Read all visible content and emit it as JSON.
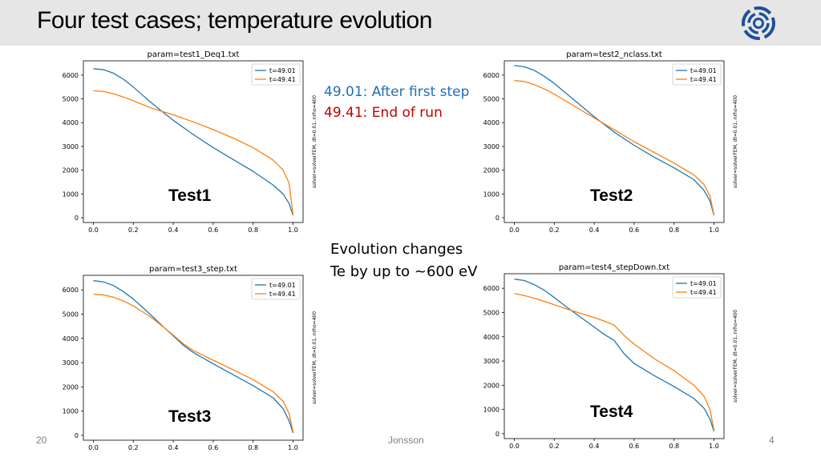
{
  "slide": {
    "title": "Four test cases; temperature evolution",
    "legend_note_first": "49.01: After first step",
    "legend_note_end": "49.41: End of run",
    "evolution_line1": "Evolution changes",
    "evolution_line2": "Te by up to ~600 eV",
    "footer_left": "20",
    "footer_center": "Jonsson",
    "footer_right": "4",
    "colors": {
      "series1": "#1f77b4",
      "series2": "#ff7f0e",
      "note_blue": "#1f6fb5",
      "note_red": "#c00000",
      "title_bar": "#e6e6e6"
    }
  },
  "chart_data": [
    {
      "type": "line",
      "title": "param=test1_Deq1.txt",
      "label": "Test1",
      "side_text": "solver=solverFEM, dt=0.01, nrho=400",
      "xlim": [
        -0.05,
        1.05
      ],
      "ylim": [
        -200,
        6600
      ],
      "xticks": [
        "0.0",
        "0.2",
        "0.4",
        "0.6",
        "0.8",
        "1.0"
      ],
      "yticks": [
        "0",
        "1000",
        "2000",
        "3000",
        "4000",
        "5000",
        "6000"
      ],
      "legend_position": "top-right",
      "x": [
        0,
        0.05,
        0.1,
        0.15,
        0.2,
        0.25,
        0.3,
        0.35,
        0.4,
        0.5,
        0.6,
        0.7,
        0.8,
        0.9,
        0.95,
        0.98,
        1.0
      ],
      "series": [
        {
          "name": "t=49.01",
          "values": [
            6270,
            6230,
            6080,
            5830,
            5500,
            5130,
            4770,
            4430,
            4100,
            3500,
            2950,
            2450,
            1950,
            1380,
            1000,
            600,
            100
          ]
        },
        {
          "name": "t=49.41",
          "values": [
            5340,
            5310,
            5220,
            5080,
            4920,
            4750,
            4590,
            4460,
            4330,
            4030,
            3710,
            3350,
            2950,
            2430,
            2000,
            1450,
            120
          ]
        }
      ]
    },
    {
      "type": "line",
      "title": "param=test2_nclass.txt",
      "label": "Test2",
      "side_text": "solver=solverFEM, dt=0.01, nrho=400",
      "xlim": [
        -0.05,
        1.05
      ],
      "ylim": [
        -200,
        6600
      ],
      "xticks": [
        "0.0",
        "0.2",
        "0.4",
        "0.6",
        "0.8",
        "1.0"
      ],
      "yticks": [
        "0",
        "1000",
        "2000",
        "3000",
        "4000",
        "5000",
        "6000"
      ],
      "legend_position": "top-right",
      "x": [
        0,
        0.05,
        0.1,
        0.15,
        0.2,
        0.25,
        0.3,
        0.35,
        0.4,
        0.5,
        0.6,
        0.7,
        0.8,
        0.9,
        0.95,
        0.98,
        1.0
      ],
      "series": [
        {
          "name": "t=49.01",
          "values": [
            6400,
            6350,
            6200,
            5950,
            5650,
            5300,
            4950,
            4600,
            4250,
            3600,
            3050,
            2550,
            2100,
            1600,
            1150,
            700,
            100
          ]
        },
        {
          "name": "t=49.41",
          "values": [
            5770,
            5730,
            5600,
            5420,
            5200,
            4950,
            4700,
            4450,
            4200,
            3700,
            3200,
            2750,
            2300,
            1800,
            1400,
            900,
            120
          ]
        }
      ]
    },
    {
      "type": "line",
      "title": "param=test3_step.txt",
      "label": "Test3",
      "side_text": "solver=solverFEM, dt=0.01, nrho=400",
      "xlim": [
        -0.05,
        1.05
      ],
      "ylim": [
        -200,
        6600
      ],
      "xticks": [
        "0.0",
        "0.2",
        "0.4",
        "0.6",
        "0.8",
        "1.0"
      ],
      "yticks": [
        "0",
        "1000",
        "2000",
        "3000",
        "4000",
        "5000",
        "6000"
      ],
      "legend_position": "top-right",
      "x": [
        0,
        0.05,
        0.1,
        0.15,
        0.2,
        0.25,
        0.3,
        0.35,
        0.4,
        0.45,
        0.5,
        0.6,
        0.7,
        0.8,
        0.9,
        0.95,
        0.98,
        1.0
      ],
      "series": [
        {
          "name": "t=49.01",
          "values": [
            6380,
            6330,
            6180,
            5930,
            5620,
            5250,
            4870,
            4480,
            4100,
            3720,
            3420,
            2950,
            2500,
            2050,
            1550,
            1100,
            600,
            100
          ]
        },
        {
          "name": "t=49.41",
          "values": [
            5820,
            5790,
            5700,
            5540,
            5340,
            5080,
            4800,
            4470,
            4130,
            3780,
            3500,
            3100,
            2700,
            2300,
            1800,
            1400,
            900,
            150
          ]
        }
      ]
    },
    {
      "type": "line",
      "title": "param=test4_stepDown.txt",
      "label": "Test4",
      "side_text": "solver=solverFEM, dt=0.01, nrho=400",
      "xlim": [
        -0.05,
        1.05
      ],
      "ylim": [
        -200,
        6600
      ],
      "xticks": [
        "0.0",
        "0.2",
        "0.4",
        "0.6",
        "0.8",
        "1.0"
      ],
      "yticks": [
        "0",
        "1000",
        "2000",
        "3000",
        "4000",
        "5000",
        "6000"
      ],
      "legend_position": "top-right",
      "x": [
        0,
        0.05,
        0.1,
        0.15,
        0.2,
        0.25,
        0.3,
        0.35,
        0.4,
        0.45,
        0.5,
        0.55,
        0.6,
        0.7,
        0.8,
        0.9,
        0.95,
        0.98,
        1.0
      ],
      "series": [
        {
          "name": "t=49.01",
          "values": [
            6380,
            6320,
            6150,
            5920,
            5620,
            5300,
            5000,
            4700,
            4400,
            4100,
            3850,
            3300,
            2900,
            2400,
            1950,
            1450,
            1050,
            600,
            100
          ]
        },
        {
          "name": "t=49.41",
          "values": [
            5780,
            5700,
            5590,
            5460,
            5320,
            5180,
            5050,
            4920,
            4790,
            4650,
            4480,
            4050,
            3700,
            3100,
            2600,
            2000,
            1550,
            1000,
            150
          ]
        }
      ]
    }
  ]
}
